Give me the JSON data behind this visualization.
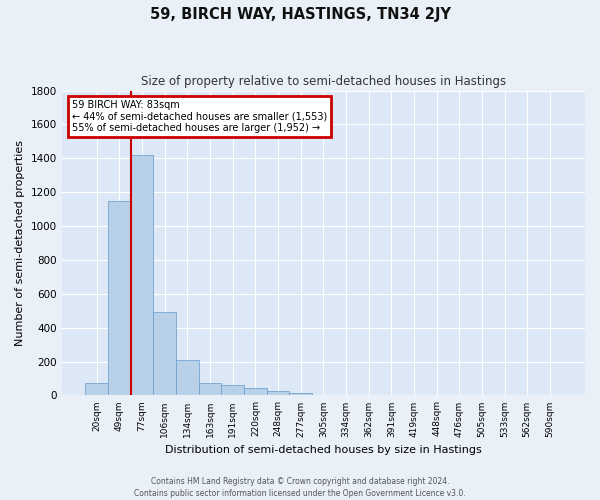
{
  "title": "59, BIRCH WAY, HASTINGS, TN34 2JY",
  "subtitle": "Size of property relative to semi-detached houses in Hastings",
  "xlabel": "Distribution of semi-detached houses by size in Hastings",
  "ylabel": "Number of semi-detached properties",
  "bar_labels": [
    "20sqm",
    "49sqm",
    "77sqm",
    "106sqm",
    "134sqm",
    "163sqm",
    "191sqm",
    "220sqm",
    "248sqm",
    "277sqm",
    "305sqm",
    "334sqm",
    "362sqm",
    "391sqm",
    "419sqm",
    "448sqm",
    "476sqm",
    "505sqm",
    "533sqm",
    "562sqm",
    "590sqm"
  ],
  "bar_values": [
    75,
    1150,
    1420,
    490,
    210,
    75,
    60,
    45,
    25,
    15,
    5,
    0,
    0,
    0,
    0,
    0,
    0,
    0,
    0,
    0,
    0
  ],
  "bar_color": "#b8d0e8",
  "bar_edge_color": "#6699cc",
  "plot_bg_color": "#dce8f5",
  "fig_bg_color": "#eaf0f8",
  "grid_color": "#ffffff",
  "vline_color": "#cc0000",
  "vline_x_index": 2,
  "ylim": [
    0,
    1800
  ],
  "yticks": [
    0,
    200,
    400,
    600,
    800,
    1000,
    1200,
    1400,
    1600,
    1800
  ],
  "annotation_title": "59 BIRCH WAY: 83sqm",
  "annotation_line1": "← 44% of semi-detached houses are smaller (1,553)",
  "annotation_line2": "55% of semi-detached houses are larger (1,952) →",
  "annotation_box_color": "#cc0000",
  "footer_line1": "Contains HM Land Registry data © Crown copyright and database right 2024.",
  "footer_line2": "Contains public sector information licensed under the Open Government Licence v3.0."
}
